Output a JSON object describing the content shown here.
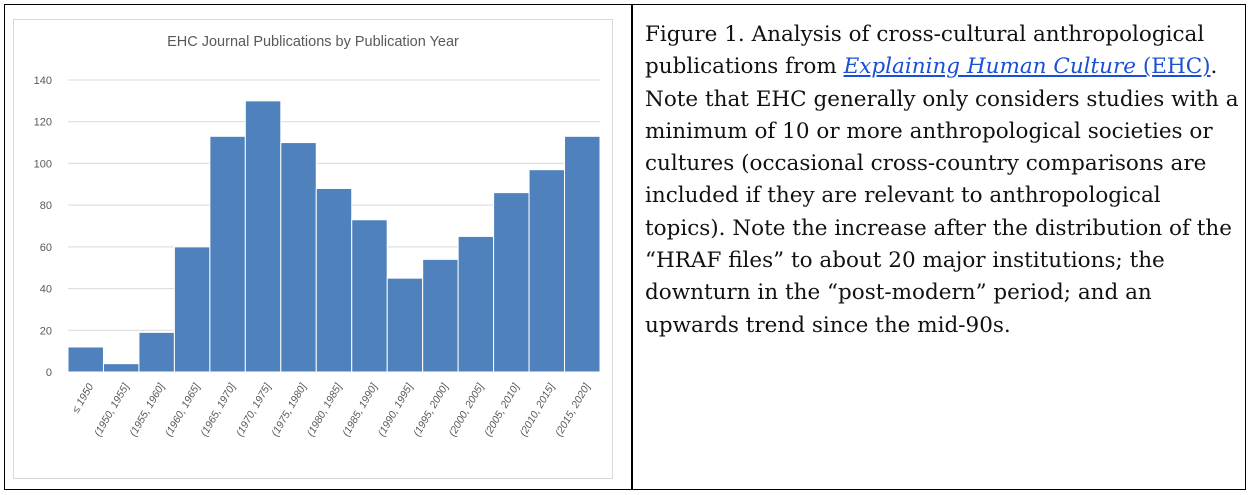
{
  "chart_data": {
    "type": "bar",
    "title": "EHC Journal Publications by Publication Year",
    "xlabel": "",
    "ylabel": "",
    "ylim": [
      0,
      140
    ],
    "yticks": [
      0,
      20,
      40,
      60,
      80,
      100,
      120,
      140
    ],
    "categories": [
      "≤ 1950",
      "(1950, 1955]",
      "(1955, 1960]",
      "(1960, 1965]",
      "(1965, 1970]",
      "(1970, 1975]",
      "(1975, 1980]",
      "(1980, 1985]",
      "(1985, 1990]",
      "(1990, 1995]",
      "(1995, 2000]",
      "(2000, 2005]",
      "(2005, 2010]",
      "(2010, 2015]",
      "(2015, 2020]"
    ],
    "values": [
      12,
      4,
      19,
      60,
      113,
      130,
      110,
      88,
      73,
      45,
      54,
      65,
      86,
      97,
      113
    ],
    "colors": {
      "bar": "#4f81bd",
      "bar_edge": "#ffffff",
      "grid": "#d9d9d9",
      "text": "#595959"
    },
    "grid": true
  },
  "caption": {
    "prefix": "Figure 1. Analysis of cross-cultural anthropological publications from ",
    "link_italic": "Explaining Human Culture",
    "link_rest": " (EHC)",
    "suffix": ". Note that EHC generally only considers studies with a minimum of 10 or more anthropological societies or cultures (occasional cross-country comparisons are included if they are relevant to anthropological topics). Note the increase after the distribution of the “HRAF files” to about 20 major institutions; the downturn in the “post-modern” period; and an upwards trend since the mid-90s."
  }
}
